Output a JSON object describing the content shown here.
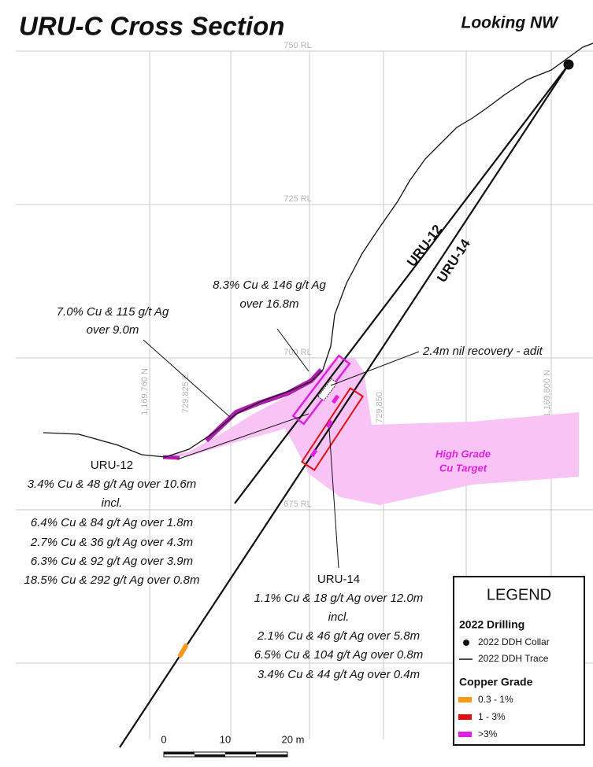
{
  "header": {
    "title": "URU-C Cross Section",
    "view": "Looking NW"
  },
  "grid_labels": {
    "rl": [
      "750 RL",
      "725 RL",
      "700 RL",
      "675 RL"
    ],
    "coords": [
      "1,169,760 N",
      "729,825 E",
      "729,850",
      "1,169,800 N"
    ]
  },
  "drillholes": [
    "URU-12",
    "URU-14"
  ],
  "annotations": {
    "upper_intercept": [
      "8.3% Cu & 146 g/t Ag",
      "over 16.8m"
    ],
    "lower_intercept": [
      "7.0% Cu & 115 g/t Ag",
      "over 9.0m"
    ],
    "adit": "2.4m nil recovery - adit",
    "target": [
      "High Grade",
      "Cu Target"
    ]
  },
  "results": [
    {
      "hole": "URU-12",
      "lines": [
        "3.4% Cu & 48 g/t Ag over 10.6m",
        "incl.",
        "6.4% Cu & 84 g/t Ag over 1.8m",
        "2.7% Cu & 36 g/t Ag over 4.3m",
        "6.3% Cu & 92 g/t Ag over 3.9m",
        "18.5% Cu & 292 g/t Ag over 0.8m"
      ]
    },
    {
      "hole": "URU-14",
      "lines": [
        "1.1% Cu & 18 g/t Ag over 12.0m",
        "incl.",
        "2.1% Cu & 46 g/t Ag over 5.8m",
        "6.5% Cu & 104 g/t Ag over 0.8m",
        "3.4% Cu & 44 g/t Ag over 0.4m"
      ]
    }
  ],
  "legend": {
    "title": "LEGEND",
    "drilling_heading": "2022 Drilling",
    "collar": "2022 DDH Collar",
    "trace": "2022 DDH Trace",
    "grade_heading": "Copper Grade",
    "grades": [
      "0.3 - 1%",
      "1 - 3%",
      ">3%"
    ]
  },
  "scale_bar": [
    "0",
    "10",
    "20 m"
  ]
}
